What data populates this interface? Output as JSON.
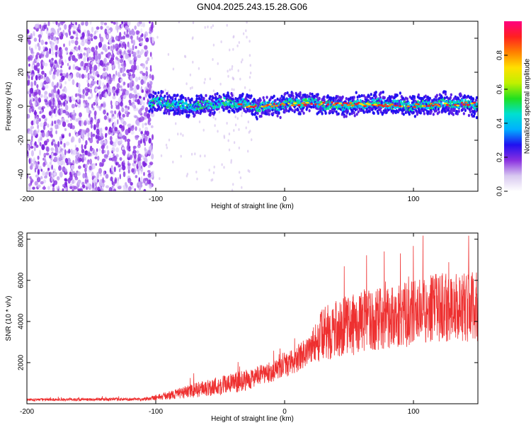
{
  "title": "GN04.2025.243.15.28.G06",
  "chart_data": [
    {
      "type": "heatmap",
      "xlabel": "Height of straight line (km)",
      "ylabel": "Frequency (Hz)",
      "xlim": [
        -200,
        150
      ],
      "ylim": [
        -50,
        50
      ],
      "xticks": [
        -200,
        -100,
        0,
        100
      ],
      "yticks": [
        -40,
        -20,
        0,
        20,
        40
      ],
      "colorbar": {
        "label": "Normalized spectral amplitude",
        "range": [
          0,
          1
        ],
        "ticks": [
          0.0,
          0.2,
          0.4,
          0.6,
          0.8
        ],
        "tick_labels": [
          "0.0",
          "0.2",
          "0.4",
          "0.6",
          "0.8"
        ],
        "colormap": [
          "#ffffff",
          "#d8c8f0",
          "#8a30e0",
          "#2010f0",
          "#00b0ff",
          "#00e0d0",
          "#20e020",
          "#c0f000",
          "#ffe000",
          "#ff8000",
          "#ff2020",
          "#ff0080"
        ]
      },
      "regions": {
        "noise_band_x": [
          -200,
          -105
        ],
        "signal_band_x": [
          -105,
          150
        ],
        "signal_center_hz": 1,
        "signal_halfwidth_hz": 5
      }
    },
    {
      "type": "line",
      "xlabel": "Height of straight line (km)",
      "ylabel": "SNR (10 * v/v)",
      "xlim": [
        -200,
        150
      ],
      "ylim": [
        0,
        8300
      ],
      "xticks": [
        -200,
        -100,
        0,
        100
      ],
      "yticks": [
        2000,
        4000,
        6000,
        8000
      ],
      "color": "#ee3030",
      "envelope": [
        {
          "x": -200,
          "mean": 200,
          "spread": 60
        },
        {
          "x": -110,
          "mean": 220,
          "spread": 80
        },
        {
          "x": -90,
          "mean": 400,
          "spread": 200
        },
        {
          "x": -70,
          "mean": 650,
          "spread": 350
        },
        {
          "x": -50,
          "mean": 900,
          "spread": 500
        },
        {
          "x": -40,
          "mean": 1000,
          "spread": 500
        },
        {
          "x": -30,
          "mean": 1150,
          "spread": 500
        },
        {
          "x": -20,
          "mean": 1350,
          "spread": 500
        },
        {
          "x": -10,
          "mean": 1550,
          "spread": 500
        },
        {
          "x": 0,
          "mean": 1800,
          "spread": 550
        },
        {
          "x": 10,
          "mean": 2200,
          "spread": 650
        },
        {
          "x": 20,
          "mean": 2700,
          "spread": 800
        },
        {
          "x": 30,
          "mean": 3400,
          "spread": 1300
        },
        {
          "x": 50,
          "mean": 3800,
          "spread": 1500
        },
        {
          "x": 70,
          "mean": 4100,
          "spread": 1500
        },
        {
          "x": 100,
          "mean": 4400,
          "spread": 1600
        },
        {
          "x": 120,
          "mean": 4700,
          "spread": 1700
        },
        {
          "x": 150,
          "mean": 4700,
          "spread": 1700
        }
      ]
    }
  ]
}
